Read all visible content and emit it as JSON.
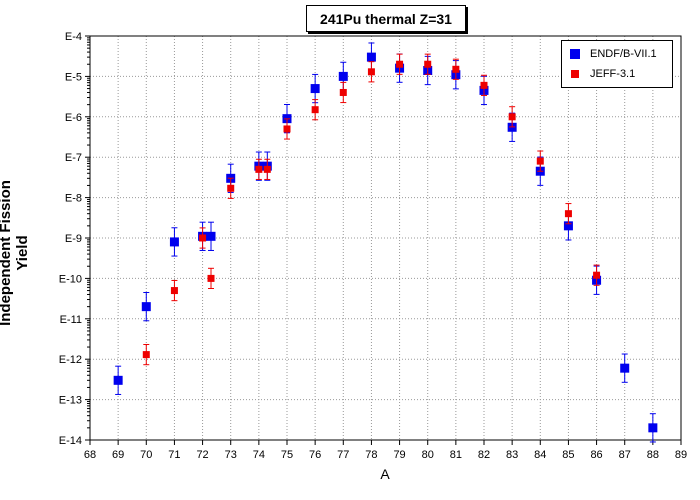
{
  "chart_data": {
    "type": "scatter",
    "title": "241Pu thermal Z=31",
    "xlabel": "A",
    "ylabel": "Independent Fission Yield",
    "xlim": [
      68,
      89
    ],
    "ylim_log10": [
      -14,
      -4
    ],
    "x_ticks": [
      "68",
      "69",
      "70",
      "71",
      "72",
      "73",
      "74",
      "75",
      "76",
      "77",
      "78",
      "79",
      "80",
      "81",
      "82",
      "83",
      "84",
      "85",
      "86",
      "87",
      "88",
      "89"
    ],
    "y_ticks": [
      "E-4",
      "E-5",
      "E-6",
      "E-7",
      "E-8",
      "E-9",
      "E-10",
      "E-11",
      "E-12",
      "E-13",
      "E-14"
    ],
    "grid": true,
    "legend_position": "top-right",
    "series": [
      {
        "name": "ENDF/B-VII.1",
        "color": "#0000ee",
        "points": [
          {
            "x": 69,
            "y": 3e-13
          },
          {
            "x": 70,
            "y": 2e-11
          },
          {
            "x": 71,
            "y": 8e-10
          },
          {
            "x": 72,
            "y": 1.1e-09
          },
          {
            "x": 72.3,
            "y": 1.1e-09
          },
          {
            "x": 73,
            "y": 3e-08
          },
          {
            "x": 74,
            "y": 6e-08
          },
          {
            "x": 74.3,
            "y": 6e-08
          },
          {
            "x": 75,
            "y": 9e-07
          },
          {
            "x": 76,
            "y": 5e-06
          },
          {
            "x": 77,
            "y": 1e-05
          },
          {
            "x": 78,
            "y": 3e-05
          },
          {
            "x": 79,
            "y": 1.6e-05
          },
          {
            "x": 80,
            "y": 1.4e-05
          },
          {
            "x": 81,
            "y": 1.1e-05
          },
          {
            "x": 82,
            "y": 4.5e-06
          },
          {
            "x": 83,
            "y": 5.5e-07
          },
          {
            "x": 84,
            "y": 4.5e-08
          },
          {
            "x": 85,
            "y": 2e-09
          },
          {
            "x": 86,
            "y": 9e-11
          },
          {
            "x": 87,
            "y": 6e-13
          },
          {
            "x": 88,
            "y": 2e-14
          }
        ]
      },
      {
        "name": "JEFF-3.1",
        "color": "#ee0000",
        "points": [
          {
            "x": 70,
            "y": 1.3e-12
          },
          {
            "x": 71,
            "y": 5e-11
          },
          {
            "x": 72,
            "y": 1e-09
          },
          {
            "x": 72.3,
            "y": 1e-10
          },
          {
            "x": 73,
            "y": 1.7e-08
          },
          {
            "x": 74,
            "y": 5e-08
          },
          {
            "x": 74.3,
            "y": 5e-08
          },
          {
            "x": 75,
            "y": 5e-07
          },
          {
            "x": 76,
            "y": 1.5e-06
          },
          {
            "x": 77,
            "y": 4e-06
          },
          {
            "x": 78,
            "y": 1.3e-05
          },
          {
            "x": 79,
            "y": 2e-05
          },
          {
            "x": 80,
            "y": 2e-05
          },
          {
            "x": 81,
            "y": 1.5e-05
          },
          {
            "x": 82,
            "y": 6e-06
          },
          {
            "x": 83,
            "y": 1e-06
          },
          {
            "x": 84,
            "y": 8e-08
          },
          {
            "x": 85,
            "y": 4e-09
          },
          {
            "x": 86,
            "y": 1.2e-10
          }
        ]
      }
    ]
  }
}
